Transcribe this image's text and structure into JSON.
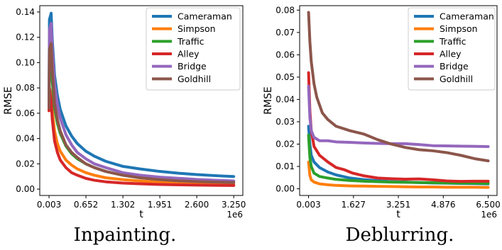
{
  "chart_data": [
    {
      "type": "line",
      "caption": "Inpainting.",
      "xlabel": "t",
      "ylabel": "RMSE",
      "x_offset_label": "1e6",
      "x_ticks": [
        0.003,
        0.652,
        1.302,
        1.951,
        2.6,
        3.25
      ],
      "x_tick_labels": [
        "0.003",
        "0.652",
        "1.302",
        "1.951",
        "2.600",
        "3.250"
      ],
      "y_ticks": [
        0.0,
        0.02,
        0.04,
        0.06,
        0.08,
        0.1,
        0.12,
        0.14
      ],
      "y_tick_labels": [
        "0.00",
        "0.02",
        "0.04",
        "0.06",
        "0.08",
        "0.10",
        "0.12",
        "0.14"
      ],
      "xlim": [
        -0.16,
        3.41
      ],
      "ylim": [
        -0.005,
        0.145
      ],
      "legend_position": "top-right",
      "series": [
        {
          "name": "Cameraman",
          "color": "#1f77b4",
          "x": [
            0.003,
            0.01,
            0.04,
            0.06,
            0.1,
            0.15,
            0.2,
            0.3,
            0.4,
            0.5,
            0.65,
            0.8,
            1.0,
            1.3,
            1.6,
            1.95,
            2.3,
            2.6,
            3.0,
            3.25
          ],
          "y": [
            0.066,
            0.134,
            0.139,
            0.118,
            0.09,
            0.074,
            0.063,
            0.05,
            0.042,
            0.036,
            0.03,
            0.026,
            0.022,
            0.018,
            0.016,
            0.014,
            0.0125,
            0.0115,
            0.0105,
            0.01
          ]
        },
        {
          "name": "Simpson",
          "color": "#ff7f0e",
          "x": [
            0.003,
            0.01,
            0.04,
            0.06,
            0.1,
            0.15,
            0.2,
            0.3,
            0.4,
            0.5,
            0.65,
            0.8,
            1.0,
            1.3,
            1.6,
            1.95,
            2.3,
            2.6,
            3.0,
            3.25
          ],
          "y": [
            0.062,
            0.08,
            0.075,
            0.062,
            0.046,
            0.036,
            0.03,
            0.023,
            0.019,
            0.016,
            0.013,
            0.011,
            0.009,
            0.0075,
            0.0065,
            0.0055,
            0.005,
            0.0045,
            0.004,
            0.0038
          ]
        },
        {
          "name": "Traffic",
          "color": "#2ca02c",
          "x": [
            0.003,
            0.01,
            0.04,
            0.06,
            0.1,
            0.15,
            0.2,
            0.3,
            0.4,
            0.5,
            0.65,
            0.8,
            1.0,
            1.3,
            1.6,
            1.95,
            2.3,
            2.6,
            3.0,
            3.25
          ],
          "y": [
            0.065,
            0.1,
            0.103,
            0.085,
            0.064,
            0.052,
            0.044,
            0.034,
            0.028,
            0.024,
            0.02,
            0.017,
            0.014,
            0.011,
            0.009,
            0.0078,
            0.007,
            0.0063,
            0.0057,
            0.0054
          ]
        },
        {
          "name": "Alley",
          "color": "#d62728",
          "x": [
            0.003,
            0.01,
            0.04,
            0.06,
            0.1,
            0.15,
            0.2,
            0.3,
            0.4,
            0.5,
            0.65,
            0.8,
            1.0,
            1.3,
            1.6,
            1.95,
            2.3,
            2.6,
            3.0,
            3.25
          ],
          "y": [
            0.062,
            0.08,
            0.07,
            0.055,
            0.038,
            0.029,
            0.023,
            0.017,
            0.013,
            0.011,
            0.0085,
            0.007,
            0.0058,
            0.0048,
            0.0042,
            0.0037,
            0.0034,
            0.0032,
            0.003,
            0.0029
          ]
        },
        {
          "name": "Bridge",
          "color": "#9467bd",
          "x": [
            0.003,
            0.01,
            0.04,
            0.06,
            0.1,
            0.15,
            0.2,
            0.3,
            0.4,
            0.5,
            0.65,
            0.8,
            1.0,
            1.3,
            1.6,
            1.95,
            2.3,
            2.6,
            3.0,
            3.25
          ],
          "y": [
            0.066,
            0.126,
            0.131,
            0.11,
            0.083,
            0.067,
            0.056,
            0.043,
            0.035,
            0.029,
            0.024,
            0.02,
            0.017,
            0.013,
            0.011,
            0.0095,
            0.0085,
            0.0077,
            0.0069,
            0.0065
          ]
        },
        {
          "name": "Goldhill",
          "color": "#8c564b",
          "x": [
            0.003,
            0.01,
            0.04,
            0.06,
            0.1,
            0.15,
            0.2,
            0.3,
            0.4,
            0.5,
            0.65,
            0.8,
            1.0,
            1.3,
            1.6,
            1.95,
            2.3,
            2.6,
            3.0,
            3.25
          ],
          "y": [
            0.064,
            0.11,
            0.115,
            0.094,
            0.068,
            0.055,
            0.046,
            0.035,
            0.029,
            0.025,
            0.02,
            0.017,
            0.014,
            0.011,
            0.009,
            0.0075,
            0.0065,
            0.006,
            0.0055,
            0.0052
          ]
        }
      ]
    },
    {
      "type": "line",
      "caption": "Deblurring.",
      "xlabel": "t",
      "ylabel": "RMSE",
      "x_offset_label": "1e6",
      "x_ticks": [
        0.003,
        1.627,
        3.251,
        4.876,
        6.5
      ],
      "x_tick_labels": [
        "0.003",
        "1.627",
        "3.251",
        "4.876",
        "6.500"
      ],
      "y_ticks": [
        0.0,
        0.01,
        0.02,
        0.03,
        0.04,
        0.05,
        0.06,
        0.07,
        0.08
      ],
      "y_tick_labels": [
        "0.00",
        "0.01",
        "0.02",
        "0.03",
        "0.04",
        "0.05",
        "0.06",
        "0.07",
        "0.08"
      ],
      "xlim": [
        -0.32,
        6.82
      ],
      "ylim": [
        -0.003,
        0.082
      ],
      "legend_position": "top-right",
      "series": [
        {
          "name": "Cameraman",
          "color": "#1f77b4",
          "x": [
            0.003,
            0.05,
            0.1,
            0.2,
            0.4,
            0.7,
            1.0,
            1.5,
            2.0,
            2.5,
            3.0,
            3.5,
            4.0,
            4.5,
            5.0,
            5.5,
            6.0,
            6.5
          ],
          "y": [
            0.028,
            0.02,
            0.015,
            0.012,
            0.0095,
            0.0075,
            0.0062,
            0.0048,
            0.0041,
            0.0036,
            0.0032,
            0.003,
            0.0028,
            0.0026,
            0.0025,
            0.0024,
            0.0023,
            0.0022
          ]
        },
        {
          "name": "Simpson",
          "color": "#ff7f0e",
          "x": [
            0.003,
            0.05,
            0.1,
            0.2,
            0.4,
            0.7,
            1.0,
            1.5,
            2.0,
            2.5,
            3.0,
            3.5,
            4.0,
            4.5,
            5.0,
            5.5,
            6.0,
            6.5
          ],
          "y": [
            0.012,
            0.006,
            0.004,
            0.003,
            0.0022,
            0.0018,
            0.0015,
            0.0013,
            0.0012,
            0.0011,
            0.001,
            0.0009,
            0.0008,
            0.0008,
            0.0007,
            0.0007,
            0.0007,
            0.0006
          ]
        },
        {
          "name": "Traffic",
          "color": "#2ca02c",
          "x": [
            0.003,
            0.05,
            0.1,
            0.2,
            0.4,
            0.7,
            1.0,
            1.5,
            2.0,
            2.5,
            3.0,
            3.5,
            4.0,
            4.5,
            5.0,
            5.5,
            6.0,
            6.5
          ],
          "y": [
            0.024,
            0.014,
            0.01,
            0.007,
            0.0055,
            0.0048,
            0.0042,
            0.0037,
            0.0034,
            0.0032,
            0.003,
            0.0029,
            0.0028,
            0.0027,
            0.0026,
            0.0025,
            0.0025,
            0.0024
          ]
        },
        {
          "name": "Alley",
          "color": "#d62728",
          "x": [
            0.003,
            0.05,
            0.1,
            0.2,
            0.4,
            0.7,
            1.0,
            1.3,
            1.6,
            2.0,
            2.5,
            3.0,
            3.5,
            4.0,
            4.5,
            5.0,
            5.5,
            6.0,
            6.5
          ],
          "y": [
            0.052,
            0.035,
            0.026,
            0.019,
            0.015,
            0.012,
            0.0095,
            0.0085,
            0.007,
            0.0058,
            0.0048,
            0.0045,
            0.0043,
            0.0044,
            0.004,
            0.0035,
            0.0033,
            0.0034,
            0.0034
          ]
        },
        {
          "name": "Bridge",
          "color": "#9467bd",
          "x": [
            0.003,
            0.05,
            0.1,
            0.2,
            0.4,
            0.7,
            1.0,
            1.5,
            2.0,
            2.5,
            3.0,
            3.5,
            4.0,
            4.5,
            5.0,
            5.5,
            6.0,
            6.5
          ],
          "y": [
            0.046,
            0.032,
            0.026,
            0.023,
            0.0215,
            0.0215,
            0.021,
            0.0208,
            0.0205,
            0.0203,
            0.0202,
            0.0202,
            0.0198,
            0.0193,
            0.0192,
            0.0191,
            0.019,
            0.0189
          ]
        },
        {
          "name": "Goldhill",
          "color": "#8c564b",
          "x": [
            0.003,
            0.05,
            0.1,
            0.2,
            0.3,
            0.5,
            0.7,
            1.0,
            1.5,
            2.0,
            2.5,
            3.0,
            3.5,
            4.0,
            4.5,
            5.0,
            5.5,
            6.0,
            6.5
          ],
          "y": [
            0.079,
            0.066,
            0.057,
            0.047,
            0.041,
            0.034,
            0.031,
            0.028,
            0.026,
            0.0245,
            0.022,
            0.02,
            0.0185,
            0.0175,
            0.017,
            0.0162,
            0.015,
            0.0135,
            0.0125
          ]
        }
      ]
    }
  ]
}
